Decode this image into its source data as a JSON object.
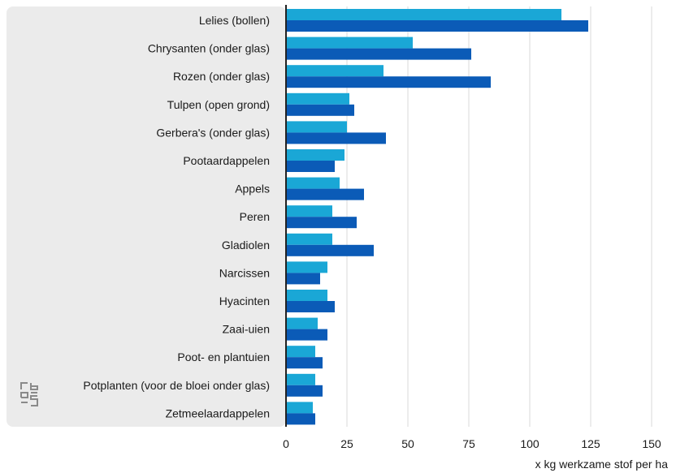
{
  "chart_data": {
    "type": "bar",
    "orientation": "horizontal",
    "categories": [
      "Lelies (bollen)",
      "Chrysanten (onder glas)",
      "Rozen (onder glas)",
      "Tulpen (open grond)",
      "Gerbera's (onder glas)",
      "Pootaardappelen",
      "Appels",
      "Peren",
      "Gladiolen",
      "Narcissen",
      "Hyacinten",
      "Zaai-uien",
      "Poot- en plantuien",
      "Potplanten (voor de bloei onder glas)",
      "Zetmeelaardappelen"
    ],
    "series": [
      {
        "values": [
          113,
          52,
          40,
          26,
          25,
          24,
          22,
          19,
          19,
          17,
          17,
          13,
          12,
          12,
          11
        ],
        "color": "#1aa7d6"
      },
      {
        "values": [
          124,
          76,
          84,
          28,
          41,
          20,
          32,
          29,
          36,
          14,
          20,
          17,
          15,
          15,
          12
        ],
        "color": "#0b5bb7"
      }
    ],
    "xticks": [
      0,
      25,
      50,
      75,
      100,
      125,
      150
    ],
    "xlim": [
      0,
      155
    ],
    "xlabel": "x kg werkzame stof per ha",
    "grid": true,
    "legend": "none"
  },
  "colors": {
    "label_panel": "#ebebeb",
    "gridline": "#d9d9d9",
    "axis": "#222222"
  },
  "logo_text": "cbs"
}
